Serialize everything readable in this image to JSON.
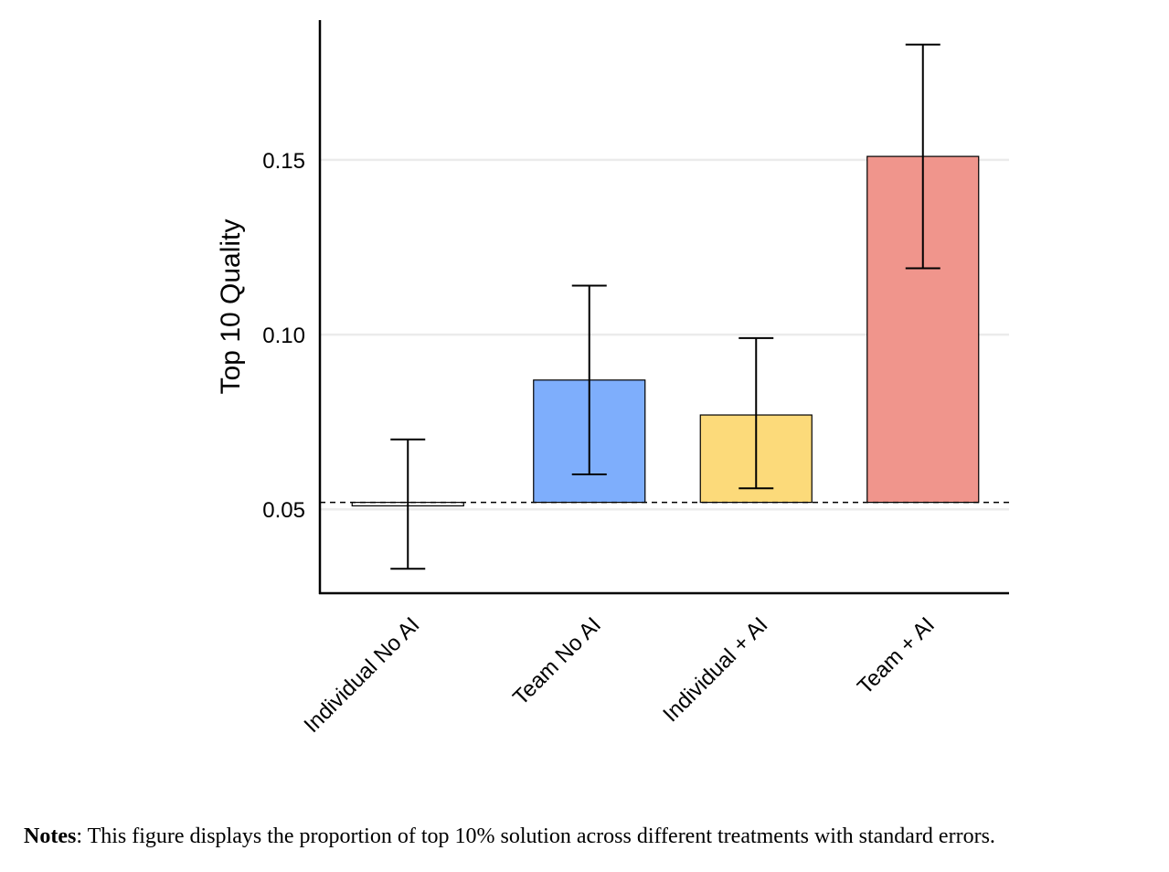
{
  "chart_data": {
    "type": "bar",
    "categories": [
      "Individual No AI",
      "Team No AI",
      "Individual + AI",
      "Team + AI"
    ],
    "values": [
      0.051,
      0.087,
      0.077,
      0.151
    ],
    "error_low": [
      0.033,
      0.06,
      0.056,
      0.119
    ],
    "error_high": [
      0.07,
      0.114,
      0.099,
      0.183
    ],
    "baseline": 0.052,
    "colors": [
      "#ffffff",
      "#7eaefc",
      "#fcda7a",
      "#f0958c"
    ],
    "ylabel": "Top 10 Quality",
    "xlabel": "",
    "yticks": [
      0.05,
      0.1,
      0.15
    ],
    "ytick_labels": [
      "0.05",
      "0.10",
      "0.15"
    ],
    "ylim": [
      0.026,
      0.19
    ],
    "grid": "horizontal",
    "error_bars": "standard errors"
  },
  "notes": {
    "label": "Notes",
    "text": ": This figure displays the proportion of top 10% solution across different treatments with standard errors."
  }
}
